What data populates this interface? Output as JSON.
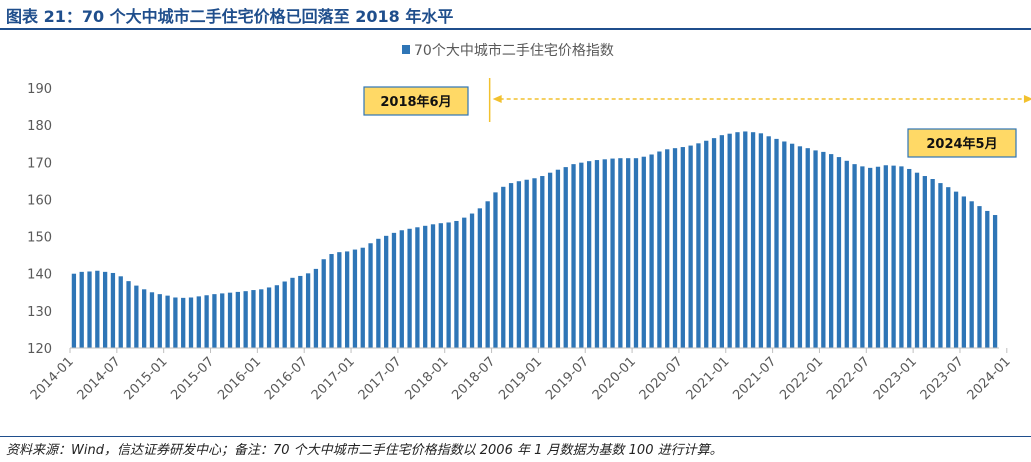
{
  "figure": {
    "title": "图表 21：70 个大中城市二手住宅价格已回落至 2018 年水平",
    "source": "资料来源：Wind，信达证券研发中心；备注：70 个大中城市二手住宅价格指数以 2006 年 1 月数据为基数 100 进行计算。"
  },
  "colors": {
    "bar": "#2e75b6",
    "title": "#1f4e8c",
    "annotation_fill": "#ffd966",
    "annotation_border": "#2e75b6",
    "arrow": "#f2c12e",
    "axis": "#bfbfbf"
  },
  "chart_data": {
    "type": "bar",
    "title": "",
    "xlabel": "",
    "ylabel": "",
    "ylim": [
      120,
      190
    ],
    "yticks": [
      120,
      130,
      140,
      150,
      160,
      170,
      180,
      190
    ],
    "grid": false,
    "legend_position": "top-center",
    "series": [
      {
        "name": "70个大中城市二手住宅价格指数",
        "x_start": "2014-01",
        "values": [
          140.0,
          140.5,
          140.6,
          140.8,
          140.5,
          140.2,
          139.3,
          138.0,
          136.8,
          135.8,
          135.0,
          134.5,
          134.1,
          133.6,
          133.5,
          133.6,
          133.9,
          134.2,
          134.5,
          134.7,
          134.9,
          135.1,
          135.3,
          135.6,
          135.8,
          136.3,
          136.9,
          137.9,
          138.9,
          139.4,
          140.1,
          141.3,
          143.9,
          145.3,
          145.8,
          146.0,
          146.5,
          147.0,
          148.2,
          149.4,
          150.2,
          151.0,
          151.7,
          152.1,
          152.5,
          152.9,
          153.3,
          153.6,
          153.8,
          154.2,
          155.1,
          156.2,
          157.6,
          159.5,
          161.9,
          163.4,
          164.4,
          164.9,
          165.3,
          165.7,
          166.3,
          167.2,
          168.0,
          168.7,
          169.5,
          169.9,
          170.3,
          170.6,
          170.8,
          171.0,
          171.1,
          171.1,
          171.1,
          171.5,
          172.1,
          172.9,
          173.5,
          173.8,
          174.1,
          174.5,
          175.1,
          175.8,
          176.5,
          177.3,
          177.7,
          178.1,
          178.3,
          178.1,
          177.8,
          177.0,
          176.3,
          175.6,
          175.0,
          174.3,
          173.8,
          173.2,
          172.8,
          172.2,
          171.4,
          170.4,
          169.5,
          168.9,
          168.5,
          168.8,
          169.2,
          169.1,
          168.9,
          168.2,
          167.2,
          166.3,
          165.5,
          164.4,
          163.3,
          162.1,
          160.8,
          159.5,
          158.2,
          156.9,
          155.8
        ]
      }
    ],
    "x_tick_labels": [
      "2014-01",
      "2014-07",
      "2015-01",
      "2015-07",
      "2016-01",
      "2016-07",
      "2017-01",
      "2017-07",
      "2018-01",
      "2018-07",
      "2019-01",
      "2019-07",
      "2020-01",
      "2020-07",
      "2021-01",
      "2021-07",
      "2022-01",
      "2022-07",
      "2023-01",
      "2023-07",
      "2024-01"
    ],
    "annotations": [
      {
        "label": "2018年6月",
        "at": "2018-06"
      },
      {
        "label": "2024年5月",
        "at": "2024-05"
      }
    ],
    "arrow": {
      "from": "2018-06",
      "to": "2024-05",
      "style": "dashed",
      "both_ends": true
    }
  }
}
